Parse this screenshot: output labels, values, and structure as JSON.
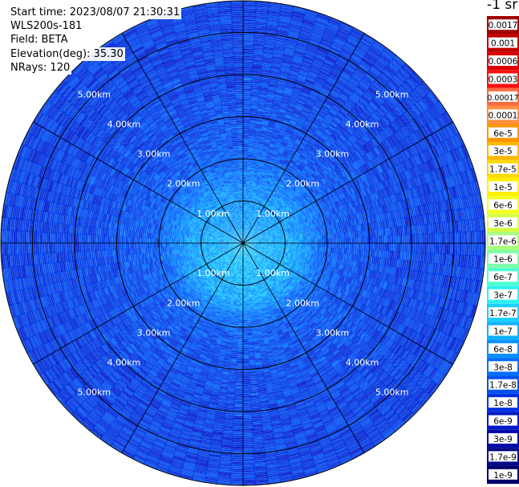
{
  "header": {
    "start_time": "Start time: 2023/08/07 21:30:31",
    "instrument": "WLS200s-181",
    "field": "Field: BETA",
    "elevation": "Elevation(deg): 35.30",
    "nrays": "NRays: 120"
  },
  "chart_data": {
    "type": "heatmap",
    "projection": "polar",
    "field": "BETA",
    "range_rings_km": [
      1,
      2,
      3,
      4,
      5
    ],
    "ring_labels": [
      "1.00km",
      "2.00km",
      "3.00km",
      "4.00km",
      "5.00km"
    ],
    "max_range_km": 5.75,
    "spokes_deg": [
      0,
      30,
      60,
      90,
      120,
      150,
      180,
      210,
      240,
      270,
      300,
      330
    ],
    "colorbar": {
      "unit_label": "-1 sr",
      "tick_labels": [
        "0.0017",
        "0.001",
        "0.0006",
        "0.0003",
        "0.00017",
        "0.0001",
        "6e-5",
        "3e-5",
        "1.7e-5",
        "1e-5",
        "6e-6",
        "3e-6",
        "1.7e-6",
        "1e-6",
        "6e-7",
        "3e-7",
        "1.7e-7",
        "1e-7",
        "6e-8",
        "3e-8",
        "1.7e-8",
        "1e-8",
        "6e-9",
        "3e-9",
        "1.7e-9",
        "1e-9"
      ],
      "colors": [
        "#a00000",
        "#bd0000",
        "#dc0000",
        "#f81010",
        "#ff3a00",
        "#ff6a00",
        "#ff9300",
        "#ffb800",
        "#ffd800",
        "#fff000",
        "#f4ff20",
        "#d4ff48",
        "#a8ff7a",
        "#7cffa8",
        "#50ffd0",
        "#30f0f0",
        "#1ad0ff",
        "#10b0ff",
        "#0a90ff",
        "#0670ff",
        "#0450f0",
        "#0232e0",
        "#0018c8",
        "#0008a8",
        "#000888",
        "#00006a"
      ],
      "colors_faded": [
        false,
        false,
        false,
        false,
        true,
        true,
        false,
        false,
        false,
        false,
        false,
        false,
        false,
        false,
        false,
        false,
        false,
        false,
        false,
        false,
        false,
        false,
        false,
        false,
        false,
        false
      ]
    },
    "beta_profile": {
      "description_range_km": [
        0,
        0.25,
        0.5,
        0.75,
        1.0,
        1.25,
        1.5,
        1.75,
        2.0,
        2.5,
        3.0,
        3.5,
        4.0,
        4.5,
        5.0,
        5.75
      ],
      "log10_beta": [
        -6.9,
        -6.95,
        -7.0,
        -7.0,
        -7.05,
        -7.1,
        -7.25,
        -7.45,
        -7.6,
        -7.7,
        -7.75,
        -7.8,
        -7.82,
        -7.85,
        -7.85,
        -7.85
      ]
    },
    "colors": {
      "background": "#ffffff",
      "ring_stroke": "#000000",
      "ring_label": "#ffffff"
    }
  }
}
